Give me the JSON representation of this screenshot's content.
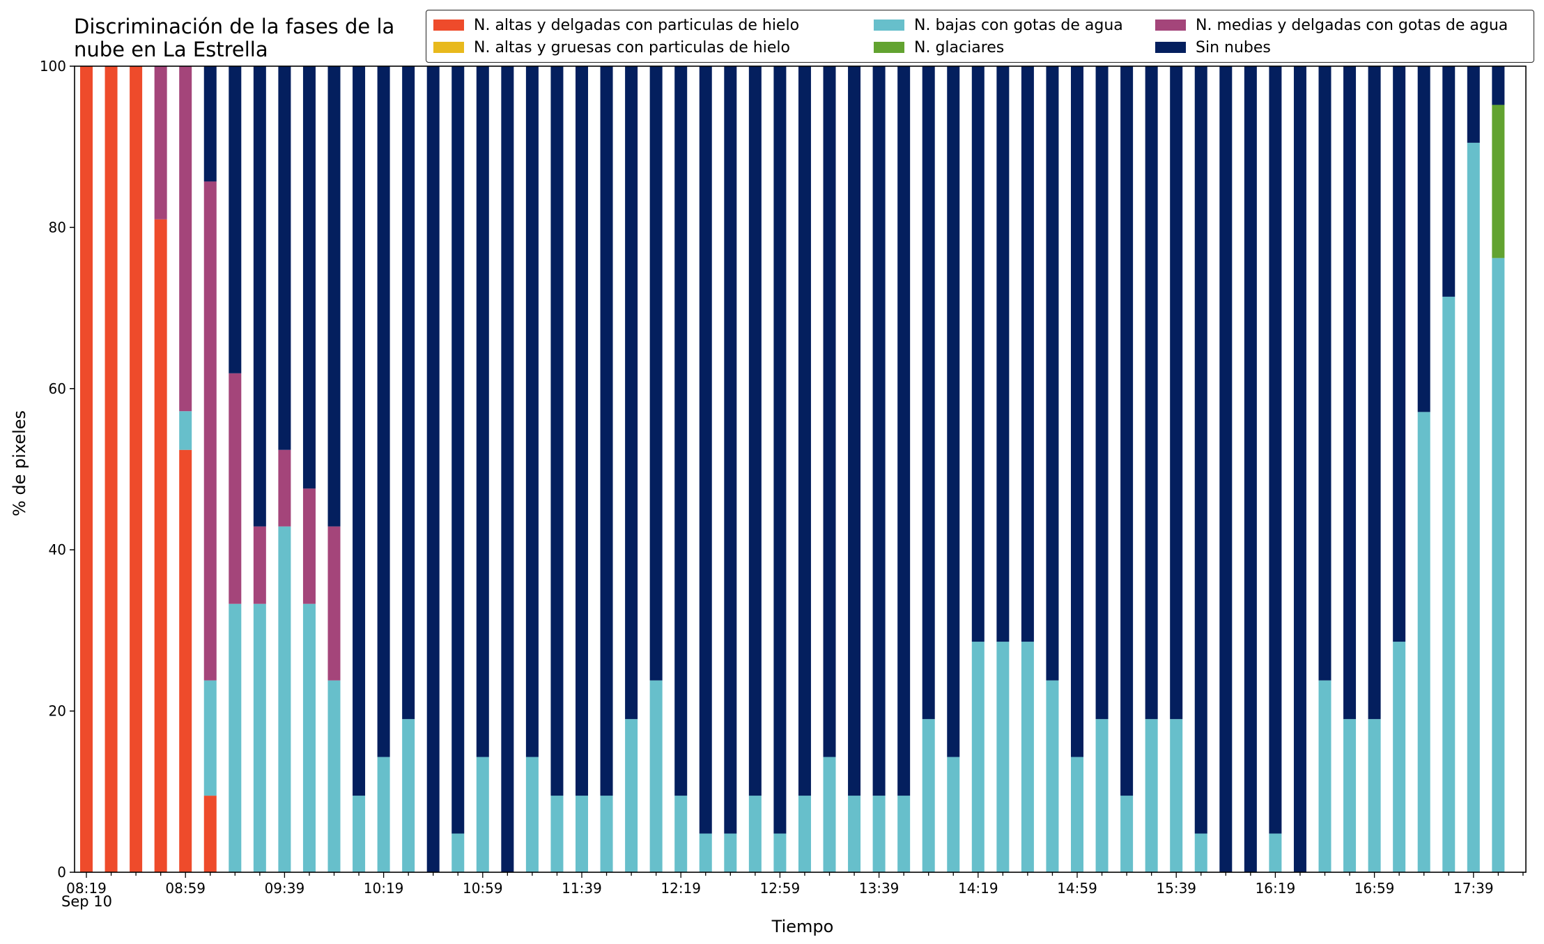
{
  "chart_data": {
    "type": "bar",
    "stacked": true,
    "title": "Discriminación de la fases de la\nnube en La Estrella",
    "title_lines": [
      "Discriminación de la fases de la",
      "nube en La Estrella"
    ],
    "xlabel": "Tiempo",
    "ylabel": "% de pixeles",
    "ylim": [
      0,
      100
    ],
    "yticks": [
      0,
      20,
      40,
      60,
      80,
      100
    ],
    "x_tick_labels": [
      "08:19",
      "08:59",
      "09:39",
      "10:19",
      "10:59",
      "11:39",
      "12:19",
      "12:59",
      "13:39",
      "14:19",
      "14:59",
      "15:39",
      "16:19",
      "16:59",
      "17:39"
    ],
    "x_tick_sublabel": "Sep 10",
    "x_start": "08:19",
    "x_interval_minutes": 10,
    "n_bars": 58,
    "legend_position": "top-right",
    "legend_columns": 3,
    "series": [
      {
        "name": "N. altas y delgadas con particulas de hielo",
        "color": "#ee4b2b",
        "values": [
          100,
          100,
          100,
          81,
          52.4,
          9.5,
          0,
          0,
          0,
          0,
          0,
          0,
          0,
          0,
          0,
          0,
          0,
          0,
          0,
          0,
          0,
          0,
          0,
          0,
          0,
          0,
          0,
          0,
          0,
          0,
          0,
          0,
          0,
          0,
          0,
          0,
          0,
          0,
          0,
          0,
          0,
          0,
          0,
          0,
          0,
          0,
          0,
          0,
          0,
          0,
          0,
          0,
          0,
          0,
          0,
          0,
          0,
          0
        ]
      },
      {
        "name": "N. altas y gruesas con particulas de hielo",
        "color": "#e8b91c",
        "values": [
          0,
          0,
          0,
          0,
          0,
          0,
          0,
          0,
          0,
          0,
          0,
          0,
          0,
          0,
          0,
          0,
          0,
          0,
          0,
          0,
          0,
          0,
          0,
          0,
          0,
          0,
          0,
          0,
          0,
          0,
          0,
          0,
          0,
          0,
          0,
          0,
          0,
          0,
          0,
          0,
          0,
          0,
          0,
          0,
          0,
          0,
          0,
          0,
          0,
          0,
          0,
          0,
          0,
          0,
          0,
          0,
          0,
          0
        ]
      },
      {
        "name": "N. bajas con gotas de agua",
        "color": "#67bfcb",
        "values": [
          0,
          0,
          0,
          0,
          4.8,
          14.3,
          33.3,
          33.3,
          42.9,
          33.3,
          23.8,
          9.5,
          14.3,
          19,
          0,
          4.8,
          14.3,
          0,
          14.3,
          9.5,
          9.5,
          9.5,
          19,
          23.8,
          9.5,
          4.8,
          4.8,
          9.5,
          4.8,
          9.5,
          14.3,
          9.5,
          9.5,
          9.5,
          19,
          14.3,
          28.6,
          28.6,
          28.6,
          23.8,
          14.3,
          19,
          9.5,
          19,
          19,
          4.8,
          0,
          0,
          4.8,
          0,
          23.8,
          19,
          19,
          28.6,
          57.1,
          71.4,
          90.5,
          76.2
        ]
      },
      {
        "name": "N. glaciares",
        "color": "#62a330",
        "values": [
          0,
          0,
          0,
          0,
          0,
          0,
          0,
          0,
          0,
          0,
          0,
          0,
          0,
          0,
          0,
          0,
          0,
          0,
          0,
          0,
          0,
          0,
          0,
          0,
          0,
          0,
          0,
          0,
          0,
          0,
          0,
          0,
          0,
          0,
          0,
          0,
          0,
          0,
          0,
          0,
          0,
          0,
          0,
          0,
          0,
          0,
          0,
          0,
          0,
          0,
          0,
          0,
          0,
          0,
          0,
          0,
          0,
          19
        ]
      },
      {
        "name": "N. medias y delgadas con gotas de agua",
        "color": "#a4457a",
        "values": [
          0,
          0,
          0,
          19,
          42.8,
          61.9,
          28.6,
          9.6,
          9.5,
          14.3,
          19.1,
          0,
          0,
          0,
          0,
          0,
          0,
          0,
          0,
          0,
          0,
          0,
          0,
          0,
          0,
          0,
          0,
          0,
          0,
          0,
          0,
          0,
          0,
          0,
          0,
          0,
          0,
          0,
          0,
          0,
          0,
          0,
          0,
          0,
          0,
          0,
          0,
          0,
          0,
          0,
          0,
          0,
          0,
          0,
          0,
          0,
          0,
          0
        ]
      },
      {
        "name": "Sin nubes",
        "color": "#041f5e",
        "values": [
          0,
          0,
          0,
          0,
          0,
          14.3,
          38.1,
          57.1,
          47.6,
          52.4,
          57.1,
          90.5,
          85.7,
          81,
          100,
          95.2,
          85.7,
          100,
          85.7,
          90.5,
          90.5,
          90.5,
          81,
          76.2,
          90.5,
          95.2,
          95.2,
          90.5,
          95.2,
          90.5,
          85.7,
          90.5,
          90.5,
          90.5,
          81,
          85.7,
          71.4,
          71.4,
          71.4,
          76.2,
          85.7,
          81,
          90.5,
          81,
          81,
          95.2,
          100,
          100,
          95.2,
          100,
          76.2,
          81,
          81,
          71.4,
          42.9,
          28.6,
          9.5,
          4.8
        ]
      }
    ]
  }
}
